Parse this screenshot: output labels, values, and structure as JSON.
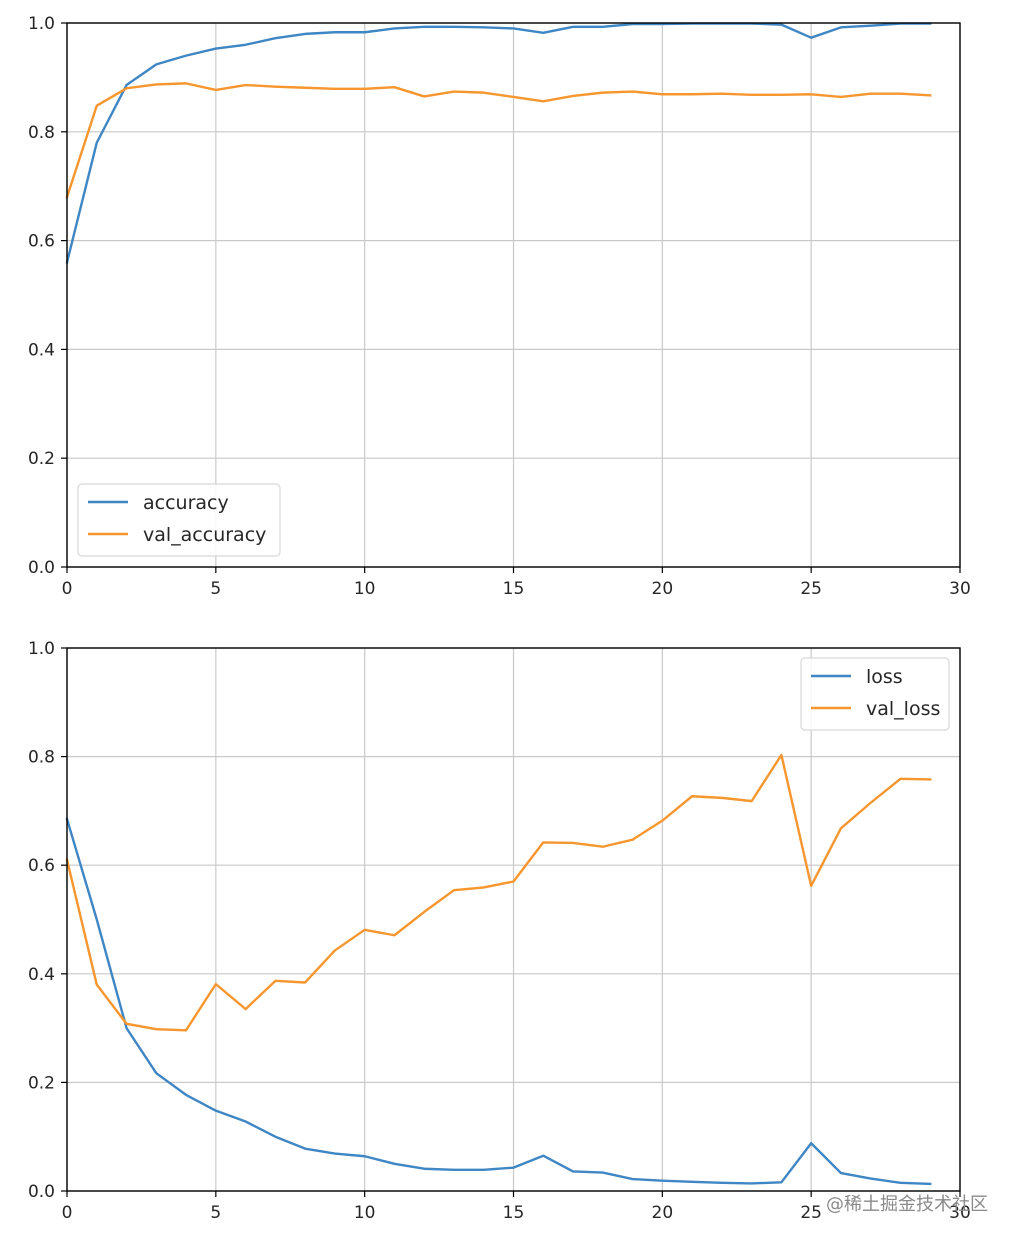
{
  "colors": {
    "blue": "#3f86c4",
    "orange": "#f6962f",
    "grid": "#c9c9c9",
    "axis": "#000000"
  },
  "watermark": "@稀土掘金技术社区",
  "chart_data": [
    {
      "type": "line",
      "x_ticks": [
        "0",
        "5",
        "10",
        "15",
        "20",
        "25",
        "30"
      ],
      "y_ticks": [
        "0.0",
        "0.2",
        "0.4",
        "0.6",
        "0.8",
        "1.0"
      ],
      "xlim": [
        0,
        30
      ],
      "ylim": [
        0,
        1
      ],
      "grid": true,
      "legend_position": "lower-left",
      "x": [
        0,
        1,
        2,
        3,
        4,
        5,
        6,
        7,
        8,
        9,
        10,
        11,
        12,
        13,
        14,
        15,
        16,
        17,
        18,
        19,
        20,
        21,
        22,
        23,
        24,
        25,
        26,
        27,
        28,
        29
      ],
      "series": [
        {
          "name": "accuracy",
          "color_key": "blue",
          "values": [
            0.56,
            0.78,
            0.886,
            0.924,
            0.94,
            0.953,
            0.96,
            0.972,
            0.98,
            0.983,
            0.983,
            0.99,
            0.993,
            0.993,
            0.992,
            0.99,
            0.982,
            0.993,
            0.993,
            0.998,
            0.998,
            0.999,
            0.999,
            0.999,
            0.997,
            0.973,
            0.992,
            0.995,
            0.999,
            0.999
          ]
        },
        {
          "name": "val_accuracy",
          "color_key": "orange",
          "values": [
            0.68,
            0.848,
            0.88,
            0.887,
            0.889,
            0.877,
            0.886,
            0.883,
            0.881,
            0.879,
            0.879,
            0.882,
            0.865,
            0.874,
            0.872,
            0.864,
            0.856,
            0.866,
            0.872,
            0.874,
            0.869,
            0.869,
            0.87,
            0.868,
            0.868,
            0.869,
            0.864,
            0.87,
            0.87,
            0.867
          ]
        }
      ]
    },
    {
      "type": "line",
      "x_ticks": [
        "0",
        "5",
        "10",
        "15",
        "20",
        "25",
        "30"
      ],
      "y_ticks": [
        "0.0",
        "0.2",
        "0.4",
        "0.6",
        "0.8",
        "1.0"
      ],
      "xlim": [
        0,
        30
      ],
      "ylim": [
        0,
        1
      ],
      "grid": true,
      "legend_position": "upper-right",
      "x": [
        0,
        1,
        2,
        3,
        4,
        5,
        6,
        7,
        8,
        9,
        10,
        11,
        12,
        13,
        14,
        15,
        16,
        17,
        18,
        19,
        20,
        21,
        22,
        23,
        24,
        25,
        26,
        27,
        28,
        29
      ],
      "series": [
        {
          "name": "loss",
          "color_key": "blue",
          "values": [
            0.685,
            0.5,
            0.3,
            0.217,
            0.177,
            0.148,
            0.128,
            0.1,
            0.078,
            0.069,
            0.064,
            0.05,
            0.041,
            0.039,
            0.039,
            0.043,
            0.065,
            0.036,
            0.034,
            0.022,
            0.019,
            0.017,
            0.015,
            0.014,
            0.016,
            0.088,
            0.033,
            0.023,
            0.015,
            0.013
          ]
        },
        {
          "name": "val_loss",
          "color_key": "orange",
          "values": [
            0.61,
            0.38,
            0.308,
            0.298,
            0.296,
            0.381,
            0.335,
            0.387,
            0.384,
            0.443,
            0.481,
            0.471,
            0.514,
            0.554,
            0.559,
            0.57,
            0.642,
            0.641,
            0.634,
            0.647,
            0.682,
            0.727,
            0.724,
            0.718,
            0.803,
            0.562,
            0.668,
            0.715,
            0.759,
            0.758
          ]
        }
      ]
    }
  ]
}
